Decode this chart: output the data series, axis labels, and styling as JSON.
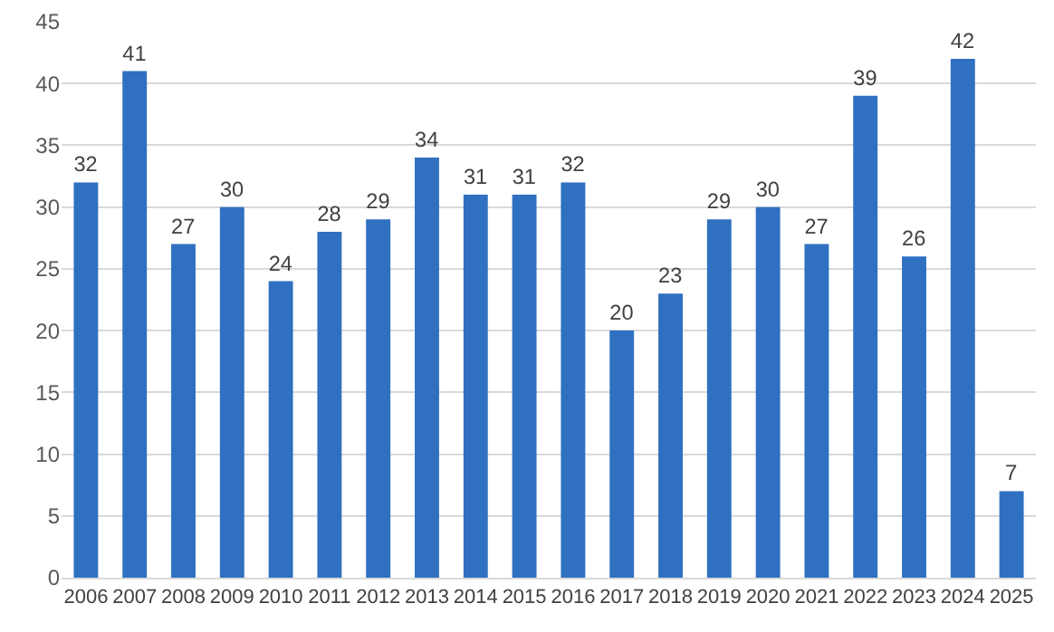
{
  "chart_data": {
    "type": "bar",
    "categories": [
      "2006",
      "2007",
      "2008",
      "2009",
      "2010",
      "2011",
      "2012",
      "2013",
      "2014",
      "2015",
      "2016",
      "2017",
      "2018",
      "2019",
      "2020",
      "2021",
      "2022",
      "2023",
      "2024",
      "2025"
    ],
    "values": [
      32,
      41,
      27,
      30,
      24,
      28,
      29,
      34,
      31,
      31,
      32,
      20,
      23,
      29,
      30,
      27,
      39,
      26,
      42,
      7
    ],
    "color": "#2f70c1",
    "ylim": [
      0,
      45
    ],
    "yticks": [
      0,
      5,
      10,
      15,
      20,
      25,
      30,
      35,
      40,
      45
    ],
    "grid": "y",
    "data_labels": true,
    "legend": false
  }
}
